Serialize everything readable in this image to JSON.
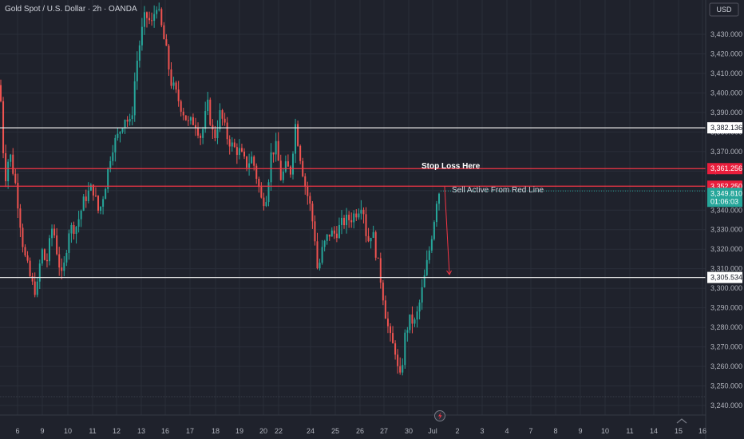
{
  "header": {
    "symbol_title": "Gold Spot / U.S. Dollar · 2h · OANDA"
  },
  "currency_badge": "USD",
  "colors": {
    "background": "#1f222c",
    "grid": "#2a2e39",
    "up": "#26a69a",
    "down": "#ef5350",
    "text": "#b2b5be",
    "white_line": "#e8e8e8",
    "red_line": "#f23645"
  },
  "chart_data": {
    "type": "candlestick",
    "title": "Gold Spot / U.S. Dollar · 2h · OANDA",
    "ylim": [
      3237,
      3452
    ],
    "y_ticks": [
      "3,240.000",
      "3,250.000",
      "3,260.000",
      "3,270.000",
      "3,280.000",
      "3,290.000",
      "3,300.000",
      "3,310.000",
      "3,320.000",
      "3,330.000",
      "3,340.000",
      "3,350.000",
      "3,360.000",
      "3,370.000",
      "3,380.000",
      "3,390.000",
      "3,400.000",
      "3,410.000",
      "3,420.000",
      "3,430.000"
    ],
    "x_ticks": [
      "6",
      "9",
      "10",
      "11",
      "12",
      "13",
      "16",
      "17",
      "18",
      "19",
      "20",
      "22",
      "24",
      "25",
      "26",
      "27",
      "30",
      "Jul",
      "2",
      "3",
      "4",
      "7",
      "8",
      "9",
      "10",
      "11",
      "14",
      "15",
      "16"
    ],
    "anchors": [
      [
        0,
        3404
      ],
      [
        6,
        3355
      ],
      [
        12,
        3370
      ],
      [
        20,
        3352
      ],
      [
        30,
        3318
      ],
      [
        40,
        3302
      ],
      [
        46,
        3298
      ],
      [
        52,
        3320
      ],
      [
        58,
        3312
      ],
      [
        66,
        3333
      ],
      [
        72,
        3317
      ],
      [
        78,
        3304
      ],
      [
        86,
        3330
      ],
      [
        96,
        3332
      ],
      [
        106,
        3346
      ],
      [
        116,
        3352
      ],
      [
        124,
        3338
      ],
      [
        132,
        3353
      ],
      [
        140,
        3372
      ],
      [
        148,
        3378
      ],
      [
        156,
        3388
      ],
      [
        164,
        3383
      ],
      [
        170,
        3412
      ],
      [
        176,
        3428
      ],
      [
        182,
        3440
      ],
      [
        190,
        3435
      ],
      [
        196,
        3446
      ],
      [
        202,
        3434
      ],
      [
        208,
        3422
      ],
      [
        214,
        3406
      ],
      [
        220,
        3400
      ],
      [
        228,
        3392
      ],
      [
        236,
        3384
      ],
      [
        244,
        3386
      ],
      [
        252,
        3377
      ],
      [
        260,
        3394
      ],
      [
        268,
        3376
      ],
      [
        276,
        3390
      ],
      [
        284,
        3378
      ],
      [
        292,
        3372
      ],
      [
        300,
        3370
      ],
      [
        308,
        3363
      ],
      [
        316,
        3367
      ],
      [
        322,
        3356
      ],
      [
        328,
        3344
      ],
      [
        334,
        3348
      ],
      [
        340,
        3370
      ],
      [
        346,
        3372
      ],
      [
        352,
        3356
      ],
      [
        358,
        3362
      ],
      [
        364,
        3360
      ],
      [
        370,
        3384
      ],
      [
        376,
        3368
      ],
      [
        382,
        3353
      ],
      [
        388,
        3343
      ],
      [
        394,
        3328
      ],
      [
        398,
        3308
      ],
      [
        404,
        3320
      ],
      [
        412,
        3328
      ],
      [
        420,
        3328
      ],
      [
        430,
        3334
      ],
      [
        440,
        3336
      ],
      [
        448,
        3340
      ],
      [
        454,
        3345
      ],
      [
        460,
        3323
      ],
      [
        466,
        3330
      ],
      [
        472,
        3316
      ],
      [
        478,
        3302
      ],
      [
        484,
        3284
      ],
      [
        490,
        3272
      ],
      [
        496,
        3268
      ],
      [
        500,
        3250
      ],
      [
        504,
        3262
      ],
      [
        508,
        3278
      ],
      [
        514,
        3284
      ],
      [
        520,
        3282
      ],
      [
        526,
        3293
      ],
      [
        532,
        3306
      ],
      [
        538,
        3320
      ],
      [
        544,
        3336
      ],
      [
        548,
        3349
      ],
      [
        552,
        3350
      ]
    ],
    "levels": [
      {
        "value": 3382.136,
        "label": "3,382.136",
        "color": "#e8e8e8"
      },
      {
        "value": 3361.256,
        "label": "3,361.256",
        "color": "#f23645"
      },
      {
        "value": 3352.25,
        "label": "3,352.250",
        "color": "#f23645"
      },
      {
        "value": 3305.534,
        "label": "3,305.534",
        "color": "#e8e8e8"
      }
    ],
    "last_price": {
      "value": 3349.81,
      "label": "3,349.810",
      "countdown": "01:06:03"
    },
    "annotations": [
      {
        "text": "Stop Loss Here",
        "y": 3364.5
      },
      {
        "text": "Sell Active From Red Line",
        "y": 3350.3
      }
    ],
    "projection_arrow": {
      "from_y": 3352,
      "to_y": 3307
    }
  }
}
